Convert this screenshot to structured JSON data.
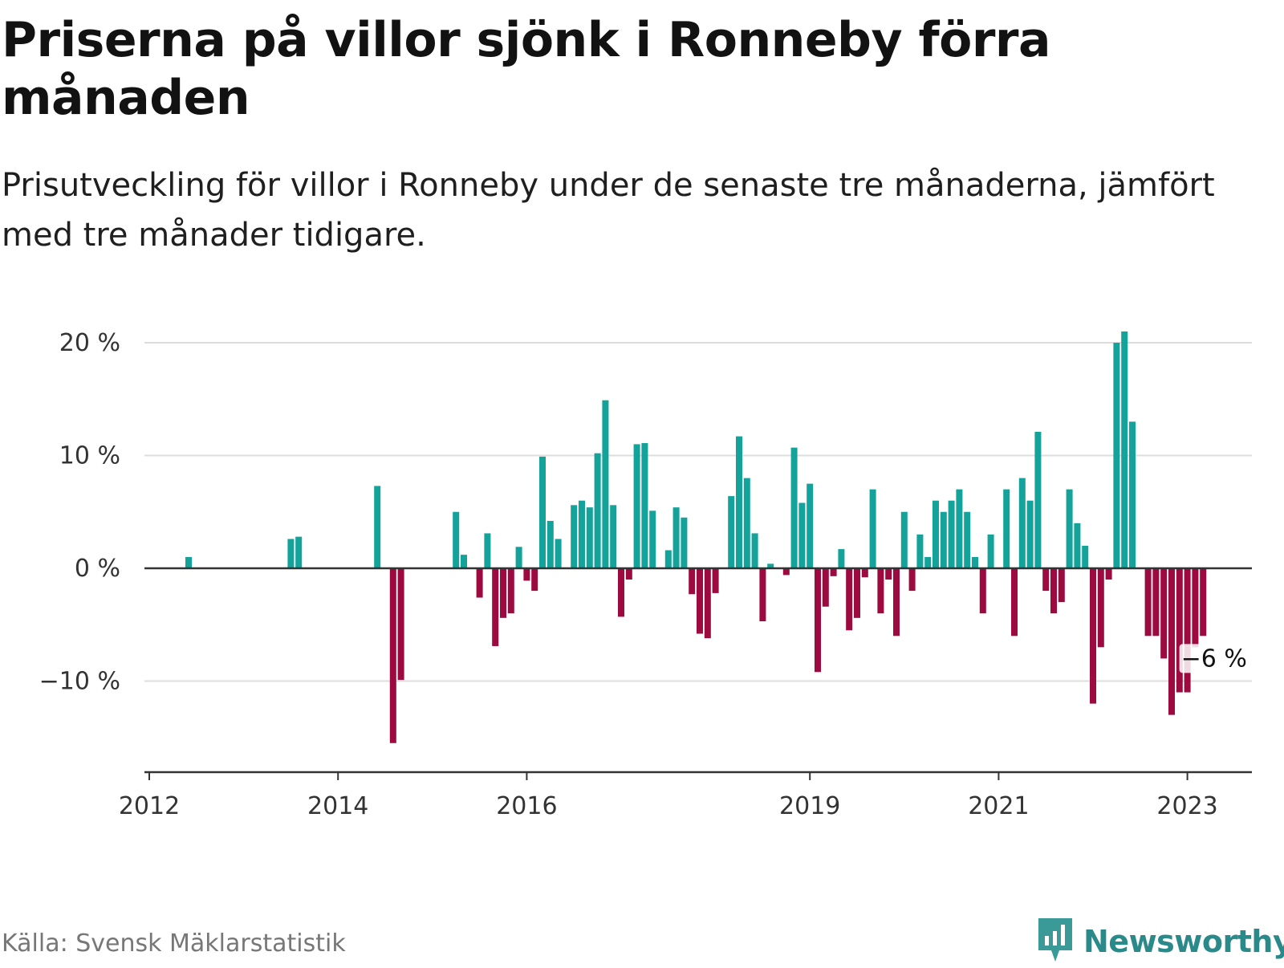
{
  "title": "Priserna på villor sjönk i Ronneby förra månaden",
  "subtitle": "Prisutveckling för villor i Ronneby under de senaste tre månaderna, jämfört med tre månader tidigare.",
  "source": "Källa: Svensk Mäklarstatistik",
  "brand": {
    "name": "Newsworthy",
    "icon": "newsworthy-logo-icon"
  },
  "colors": {
    "positive": "#14a39a",
    "negative": "#9c0a3f",
    "grid": "#dddddd",
    "axis": "#333333"
  },
  "chart_data": {
    "type": "bar",
    "title": "Priserna på villor sjönk i Ronneby förra månaden",
    "subtitle": "Prisutveckling för villor i Ronneby under de senaste tre månaderna, jämfört med tre månader tidigare.",
    "xlabel": "",
    "ylabel": "",
    "unit": "%",
    "ylim": [
      -17,
      22
    ],
    "yticks": [
      {
        "value": 20,
        "label": "20 %"
      },
      {
        "value": 10,
        "label": "10 %"
      },
      {
        "value": 0,
        "label": "0 %"
      },
      {
        "value": -10,
        "label": "−10 %"
      }
    ],
    "xticks": [
      {
        "date": "2012-01",
        "label": "2012"
      },
      {
        "date": "2014-01",
        "label": "2014"
      },
      {
        "date": "2016-01",
        "label": "2016"
      },
      {
        "date": "2019-01",
        "label": "2019"
      },
      {
        "date": "2021-01",
        "label": "2021"
      },
      {
        "date": "2023-01",
        "label": "2023"
      }
    ],
    "xlim": [
      "2012-01",
      "2023-08"
    ],
    "grid": true,
    "legend": "none",
    "annotation": {
      "date": "2023-01",
      "text": "−6 %"
    },
    "points": [
      {
        "date": "2012-06",
        "value": 1
      },
      {
        "date": "2013-07",
        "value": 2.6
      },
      {
        "date": "2013-08",
        "value": 2.8
      },
      {
        "date": "2014-06",
        "value": 7.3
      },
      {
        "date": "2014-08",
        "value": -15.5
      },
      {
        "date": "2014-09",
        "value": -9.9
      },
      {
        "date": "2015-04",
        "value": 5
      },
      {
        "date": "2015-05",
        "value": 1.2
      },
      {
        "date": "2015-07",
        "value": -2.6
      },
      {
        "date": "2015-08",
        "value": 3.1
      },
      {
        "date": "2015-09",
        "value": -6.9
      },
      {
        "date": "2015-10",
        "value": -4.4
      },
      {
        "date": "2015-11",
        "value": -4
      },
      {
        "date": "2015-12",
        "value": 1.9
      },
      {
        "date": "2016-01",
        "value": -1.1
      },
      {
        "date": "2016-02",
        "value": -2
      },
      {
        "date": "2016-03",
        "value": 9.9
      },
      {
        "date": "2016-04",
        "value": 4.2
      },
      {
        "date": "2016-05",
        "value": 2.6
      },
      {
        "date": "2016-07",
        "value": 5.6
      },
      {
        "date": "2016-08",
        "value": 6
      },
      {
        "date": "2016-09",
        "value": 5.4
      },
      {
        "date": "2016-10",
        "value": 10.2
      },
      {
        "date": "2016-11",
        "value": 14.9
      },
      {
        "date": "2016-12",
        "value": 5.6
      },
      {
        "date": "2017-01",
        "value": -4.3
      },
      {
        "date": "2017-02",
        "value": -1
      },
      {
        "date": "2017-03",
        "value": 11
      },
      {
        "date": "2017-04",
        "value": 11.1
      },
      {
        "date": "2017-05",
        "value": 5.1
      },
      {
        "date": "2017-07",
        "value": 1.6
      },
      {
        "date": "2017-08",
        "value": 5.4
      },
      {
        "date": "2017-09",
        "value": 4.5
      },
      {
        "date": "2017-10",
        "value": -2.3
      },
      {
        "date": "2017-11",
        "value": -5.8
      },
      {
        "date": "2017-12",
        "value": -6.2
      },
      {
        "date": "2018-01",
        "value": -2.2
      },
      {
        "date": "2018-03",
        "value": 6.4
      },
      {
        "date": "2018-04",
        "value": 11.7
      },
      {
        "date": "2018-05",
        "value": 8
      },
      {
        "date": "2018-06",
        "value": 3.1
      },
      {
        "date": "2018-07",
        "value": -4.7
      },
      {
        "date": "2018-08",
        "value": 0.4
      },
      {
        "date": "2018-10",
        "value": -0.6
      },
      {
        "date": "2018-11",
        "value": 10.7
      },
      {
        "date": "2018-12",
        "value": 5.8
      },
      {
        "date": "2019-01",
        "value": 7.5
      },
      {
        "date": "2019-02",
        "value": -9.2
      },
      {
        "date": "2019-03",
        "value": -3.4
      },
      {
        "date": "2019-04",
        "value": -0.7
      },
      {
        "date": "2019-05",
        "value": 1.7
      },
      {
        "date": "2019-06",
        "value": -5.5
      },
      {
        "date": "2019-07",
        "value": -4.4
      },
      {
        "date": "2019-08",
        "value": -0.8
      },
      {
        "date": "2019-09",
        "value": 7
      },
      {
        "date": "2019-10",
        "value": -4
      },
      {
        "date": "2019-11",
        "value": -1
      },
      {
        "date": "2019-12",
        "value": -6
      },
      {
        "date": "2020-01",
        "value": 5
      },
      {
        "date": "2020-02",
        "value": -2
      },
      {
        "date": "2020-03",
        "value": 3
      },
      {
        "date": "2020-04",
        "value": 1
      },
      {
        "date": "2020-05",
        "value": 6
      },
      {
        "date": "2020-06",
        "value": 5
      },
      {
        "date": "2020-07",
        "value": 6
      },
      {
        "date": "2020-08",
        "value": 7
      },
      {
        "date": "2020-09",
        "value": 5
      },
      {
        "date": "2020-10",
        "value": 1
      },
      {
        "date": "2020-11",
        "value": -4
      },
      {
        "date": "2020-12",
        "value": 3
      },
      {
        "date": "2021-02",
        "value": 7
      },
      {
        "date": "2021-03",
        "value": -6
      },
      {
        "date": "2021-04",
        "value": 8
      },
      {
        "date": "2021-05",
        "value": 6
      },
      {
        "date": "2021-06",
        "value": 12.1
      },
      {
        "date": "2021-07",
        "value": -2
      },
      {
        "date": "2021-08",
        "value": -4
      },
      {
        "date": "2021-09",
        "value": -3
      },
      {
        "date": "2021-10",
        "value": 7
      },
      {
        "date": "2021-11",
        "value": 4
      },
      {
        "date": "2021-12",
        "value": 2
      },
      {
        "date": "2022-01",
        "value": -12
      },
      {
        "date": "2022-02",
        "value": -7
      },
      {
        "date": "2022-03",
        "value": -1
      },
      {
        "date": "2022-04",
        "value": 20
      },
      {
        "date": "2022-05",
        "value": 21
      },
      {
        "date": "2022-06",
        "value": 13
      },
      {
        "date": "2022-08",
        "value": -6
      },
      {
        "date": "2022-09",
        "value": -6
      },
      {
        "date": "2022-10",
        "value": -8
      },
      {
        "date": "2022-11",
        "value": -13
      },
      {
        "date": "2022-12",
        "value": -11
      },
      {
        "date": "2023-01",
        "value": -11
      },
      {
        "date": "2023-02",
        "value": -7
      },
      {
        "date": "2023-03",
        "value": -6
      }
    ]
  }
}
